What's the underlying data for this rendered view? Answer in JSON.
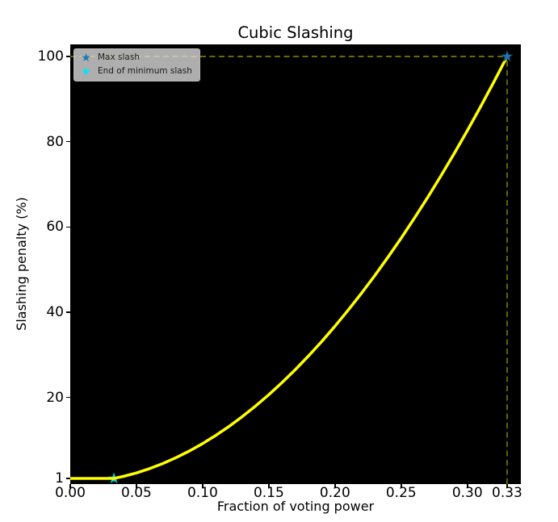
{
  "legend": {
    "items": [
      {
        "label": "Max slash",
        "color": "#1f77b4"
      },
      {
        "label": "End of minimum slash",
        "color": "#00e5ff"
      }
    ]
  },
  "chart_data": {
    "type": "line",
    "title": "Cubic Slashing",
    "xlabel": "Fraction of voting power",
    "ylabel": "Slashing penalty (%)",
    "xlim": [
      0,
      0.3404
    ],
    "ylim": [
      -0.32,
      102.84
    ],
    "grid": false,
    "legend_position": "upper left",
    "x_ticks": [
      {
        "v": 0.0,
        "label": "0.00"
      },
      {
        "v": 0.05,
        "label": "0.05"
      },
      {
        "v": 0.1,
        "label": "0.10"
      },
      {
        "v": 0.15,
        "label": "0.15"
      },
      {
        "v": 0.2,
        "label": "0.20"
      },
      {
        "v": 0.25,
        "label": "0.25"
      },
      {
        "v": 0.3,
        "label": "0.30"
      },
      {
        "v": 0.33,
        "label": "0.33"
      }
    ],
    "y_ticks": [
      {
        "v": 1,
        "label": "1"
      },
      {
        "v": 20,
        "label": "20"
      },
      {
        "v": 40,
        "label": "40"
      },
      {
        "v": 60,
        "label": "60"
      },
      {
        "v": 80,
        "label": "80"
      },
      {
        "v": 100,
        "label": "100"
      }
    ],
    "series": [
      {
        "name": "slashing-penalty-curve",
        "color": "#ffff00",
        "x": [
          0,
          0.033,
          0.04,
          0.05,
          0.06,
          0.07,
          0.08,
          0.09,
          0.1,
          0.11,
          0.12,
          0.13,
          0.14,
          0.15,
          0.16,
          0.17,
          0.18,
          0.19,
          0.2,
          0.21,
          0.22,
          0.23,
          0.24,
          0.25,
          0.26,
          0.27,
          0.28,
          0.29,
          0.3,
          0.31,
          0.32,
          0.33
        ],
        "y": [
          1,
          1,
          1.47,
          2.3,
          3.31,
          4.5,
          5.88,
          7.44,
          9.18,
          11.11,
          13.22,
          15.52,
          18.0,
          20.66,
          23.51,
          26.54,
          29.75,
          33.15,
          36.73,
          40.5,
          44.44,
          48.58,
          52.9,
          57.39,
          62.08,
          66.94,
          71.99,
          77.23,
          82.64,
          88.25,
          94.03,
          100
        ]
      }
    ],
    "guides": [
      {
        "name": "max-slash-hline",
        "x1": 0,
        "y1": 100,
        "x2": 0.33,
        "y2": 100
      },
      {
        "name": "max-slash-vline",
        "x1": 0.33,
        "y1": -0.32,
        "x2": 0.33,
        "y2": 100
      }
    ],
    "markers": [
      {
        "name": "max-slash",
        "label": "Max slash",
        "x": 0.33,
        "y": 100,
        "color": "#1f77b4",
        "edge": "#10466b",
        "size": 7,
        "above_curve": true
      },
      {
        "name": "end-of-min-slash",
        "label": "End of minimum slash",
        "x": 0.033,
        "y": 1,
        "color": "#00e5ff",
        "edge": "#00aacc",
        "size": 6.5,
        "above_curve": false
      }
    ],
    "colors": {
      "plot_bg": "#000000",
      "figure_bg": "#ffffff",
      "curve": "#ffff00",
      "guide": "#ffff00",
      "guide_opacity": 0.55,
      "tick": "#000000"
    }
  }
}
